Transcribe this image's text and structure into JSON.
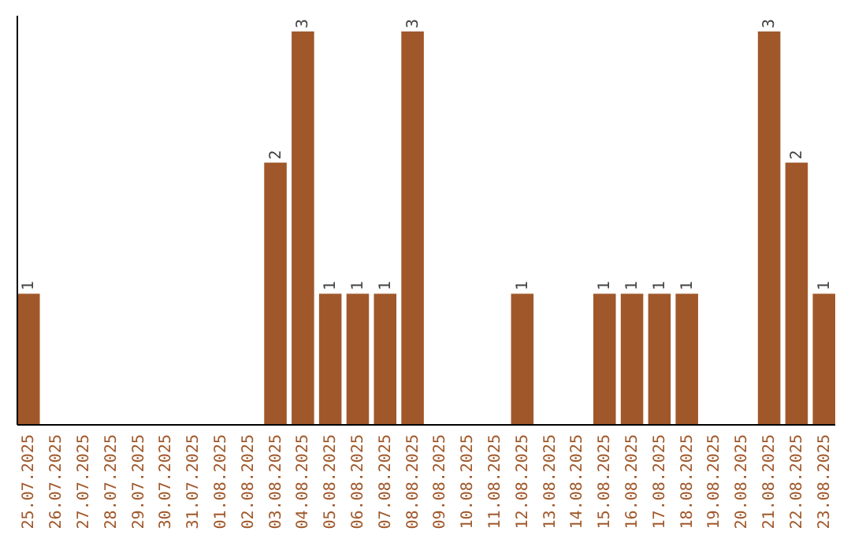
{
  "chart_data": {
    "type": "bar",
    "categories": [
      "25.07.2025",
      "26.07.2025",
      "27.07.2025",
      "28.07.2025",
      "29.07.2025",
      "30.07.2025",
      "31.07.2025",
      "01.08.2025",
      "02.08.2025",
      "03.08.2025",
      "04.08.2025",
      "05.08.2025",
      "06.08.2025",
      "07.08.2025",
      "08.08.2025",
      "09.08.2025",
      "10.08.2025",
      "11.08.2025",
      "12.08.2025",
      "13.08.2025",
      "14.08.2025",
      "15.08.2025",
      "16.08.2025",
      "17.08.2025",
      "18.08.2025",
      "19.08.2025",
      "20.08.2025",
      "21.08.2025",
      "22.08.2025",
      "23.08.2025"
    ],
    "values": [
      1,
      0,
      0,
      0,
      0,
      0,
      0,
      0,
      0,
      2,
      3,
      1,
      1,
      1,
      3,
      0,
      0,
      0,
      1,
      0,
      0,
      1,
      1,
      1,
      1,
      0,
      0,
      3,
      2,
      1
    ],
    "value_labels": [
      "1",
      null,
      null,
      null,
      null,
      null,
      null,
      null,
      null,
      "2",
      "3",
      "1",
      "1",
      "1",
      "3",
      null,
      null,
      null,
      "1",
      null,
      null,
      "1",
      "1",
      "1",
      "1",
      null,
      null,
      "3",
      "2",
      "1"
    ],
    "color": "#a0582a"
  }
}
